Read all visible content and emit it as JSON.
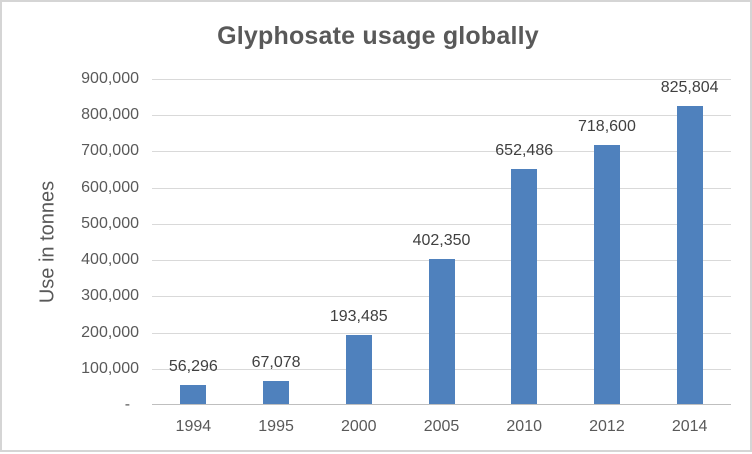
{
  "chart_data": {
    "type": "bar",
    "title": "Glyphosate usage globally",
    "ylabel": "Use in tonnes",
    "xlabel": "",
    "categories": [
      "1994",
      "1995",
      "2000",
      "2005",
      "2010",
      "2012",
      "2014"
    ],
    "values": [
      56296,
      67078,
      193485,
      402350,
      652486,
      718600,
      825804
    ],
    "value_labels": [
      "56,296",
      "67,078",
      "193,485",
      "402,350",
      "652,486",
      "718,600",
      "825,804"
    ],
    "ylim": [
      0,
      900000
    ],
    "grid": true,
    "legend": "none",
    "yticks": [
      {
        "value": 0,
        "label": "-  "
      },
      {
        "value": 100000,
        "label": "100,000"
      },
      {
        "value": 200000,
        "label": "200,000"
      },
      {
        "value": 300000,
        "label": "300,000"
      },
      {
        "value": 400000,
        "label": "400,000"
      },
      {
        "value": 500000,
        "label": "500,000"
      },
      {
        "value": 600000,
        "label": "600,000"
      },
      {
        "value": 700000,
        "label": "700,000"
      },
      {
        "value": 800000,
        "label": "800,000"
      },
      {
        "value": 900000,
        "label": "900,000"
      }
    ],
    "colors": {
      "bar": "#4F81BD",
      "gridline": "#D9D9D9",
      "axis_line": "#BFBFBF",
      "axis_text": "#595959",
      "data_label": "#404040",
      "title_text": "#595959",
      "chart_border": "#D5D5D5",
      "background": "#FFFFFF"
    }
  }
}
